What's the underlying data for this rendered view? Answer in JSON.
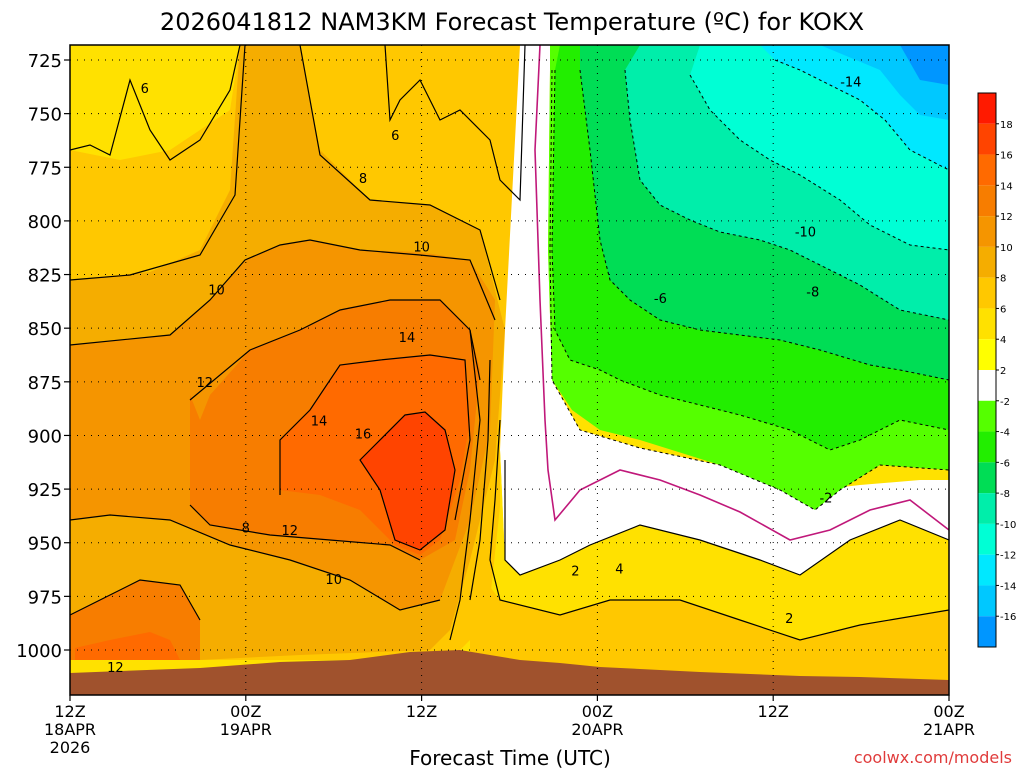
{
  "chart_data": {
    "type": "heatmap",
    "title": "2026041812 NAM3KM Forecast Temperature (ºC) for KOKX",
    "xlabel": "Forecast Time (UTC)",
    "ylabel": "",
    "credit": "coolwx.com/models",
    "y_ticks": [
      "725",
      "750",
      "775",
      "800",
      "825",
      "850",
      "875",
      "900",
      "925",
      "950",
      "975",
      "1000"
    ],
    "y_values": [
      725,
      750,
      775,
      800,
      825,
      850,
      875,
      900,
      925,
      950,
      975,
      1000
    ],
    "ylim": [
      712,
      1030
    ],
    "x_ticks": [
      {
        "hour": 0,
        "l1": "12Z",
        "l2": "18APR",
        "l3": "2026"
      },
      {
        "hour": 12,
        "l1": "00Z",
        "l2": "19APR",
        "l3": ""
      },
      {
        "hour": 24,
        "l1": "12Z",
        "l2": "",
        "l3": ""
      },
      {
        "hour": 36,
        "l1": "00Z",
        "l2": "20APR",
        "l3": ""
      },
      {
        "hour": 48,
        "l1": "12Z",
        "l2": "",
        "l3": ""
      },
      {
        "hour": 60,
        "l1": "00Z",
        "l2": "21APR",
        "l3": ""
      }
    ],
    "xlim": [
      0,
      60
    ],
    "colorbar": {
      "labels": [
        "18",
        "16",
        "14",
        "12",
        "10",
        "8",
        "6",
        "4",
        "2",
        "-2",
        "-4",
        "-6",
        "-8",
        "-10",
        "-12",
        "-14",
        "-16"
      ],
      "colors": [
        "#ff1a00",
        "#ff4400",
        "#ff6a00",
        "#f77d00",
        "#f59500",
        "#f5ad00",
        "#ffc800",
        "#ffe100",
        "#ffff00",
        "#ffffff",
        "#55ff00",
        "#22ee00",
        "#00dd55",
        "#00eeaa",
        "#00ffd5",
        "#00e8ff",
        "#00c8ff",
        "#0096ff"
      ]
    },
    "contour_labels": [
      {
        "text": "6",
        "h": 5.1,
        "p": 738
      },
      {
        "text": "6",
        "h": 22.2,
        "p": 760
      },
      {
        "text": "8",
        "h": 20.0,
        "p": 780
      },
      {
        "text": "10",
        "h": 24.0,
        "p": 812
      },
      {
        "text": "10",
        "h": 10.0,
        "p": 832
      },
      {
        "text": "14",
        "h": 23.0,
        "p": 854
      },
      {
        "text": "12",
        "h": 9.2,
        "p": 875
      },
      {
        "text": "14",
        "h": 17.0,
        "p": 893
      },
      {
        "text": "16",
        "h": 20.0,
        "p": 899
      },
      {
        "text": "8",
        "h": 12.0,
        "p": 943
      },
      {
        "text": "12",
        "h": 15.0,
        "p": 944
      },
      {
        "text": "10",
        "h": 18.0,
        "p": 967
      },
      {
        "text": "12",
        "h": 3.1,
        "p": 1008
      },
      {
        "text": "2",
        "h": 34.5,
        "p": 963
      },
      {
        "text": "4",
        "h": 37.5,
        "p": 962
      },
      {
        "text": "2",
        "h": 49.1,
        "p": 985
      },
      {
        "text": "-2",
        "h": 51.6,
        "p": 929
      },
      {
        "text": "-6",
        "h": 40.3,
        "p": 836
      },
      {
        "text": "-8",
        "h": 50.7,
        "p": 833
      },
      {
        "text": "-10",
        "h": 50.2,
        "p": 805
      },
      {
        "text": "-14",
        "h": 53.3,
        "p": 735
      }
    ]
  }
}
